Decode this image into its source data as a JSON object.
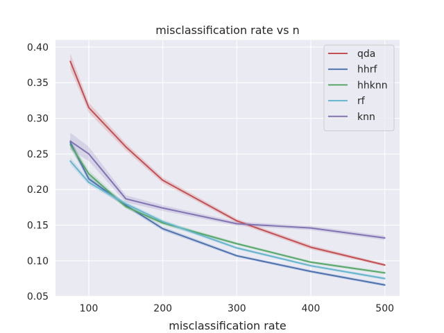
{
  "chart_data": {
    "type": "line",
    "title": "misclassification rate vs n",
    "xlabel": "misclassification rate",
    "ylabel": "",
    "x": [
      75,
      100,
      150,
      200,
      300,
      400,
      500
    ],
    "xlim": [
      55,
      520
    ],
    "ylim": [
      0.05,
      0.41
    ],
    "xticks": [
      100,
      200,
      300,
      400,
      500
    ],
    "xtick_labels": [
      "100",
      "200",
      "300",
      "400",
      "500"
    ],
    "yticks": [
      0.05,
      0.1,
      0.15,
      0.2,
      0.25,
      0.3,
      0.35,
      0.4
    ],
    "ytick_labels": [
      "0.05",
      "0.10",
      "0.15",
      "0.20",
      "0.25",
      "0.30",
      "0.35",
      "0.40"
    ],
    "grid": true,
    "legend_position": "top-right",
    "series": [
      {
        "name": "qda",
        "color": "#c44e52",
        "values": [
          0.38,
          0.315,
          0.26,
          0.213,
          0.156,
          0.119,
          0.094
        ],
        "band": [
          0.011,
          0.007,
          0.005,
          0.004,
          0.003,
          0.003,
          0.002
        ]
      },
      {
        "name": "hhrf",
        "color": "#4c72b0",
        "values": [
          0.266,
          0.215,
          0.178,
          0.145,
          0.107,
          0.085,
          0.066
        ],
        "band": [
          0.006,
          0.005,
          0.003,
          0.003,
          0.002,
          0.002,
          0.002
        ]
      },
      {
        "name": "hhknn",
        "color": "#55a868",
        "values": [
          0.263,
          0.222,
          0.176,
          0.153,
          0.124,
          0.098,
          0.083
        ],
        "band": [
          0.006,
          0.005,
          0.003,
          0.003,
          0.002,
          0.002,
          0.002
        ]
      },
      {
        "name": "rf",
        "color": "#64b5cd",
        "values": [
          0.24,
          0.21,
          0.18,
          0.155,
          0.118,
          0.093,
          0.075
        ],
        "band": [
          0.005,
          0.004,
          0.003,
          0.003,
          0.002,
          0.002,
          0.002
        ]
      },
      {
        "name": "knn",
        "color": "#8172b2",
        "values": [
          0.268,
          0.25,
          0.187,
          0.174,
          0.152,
          0.146,
          0.132
        ],
        "band": [
          0.012,
          0.01,
          0.005,
          0.004,
          0.003,
          0.003,
          0.003
        ]
      }
    ]
  }
}
